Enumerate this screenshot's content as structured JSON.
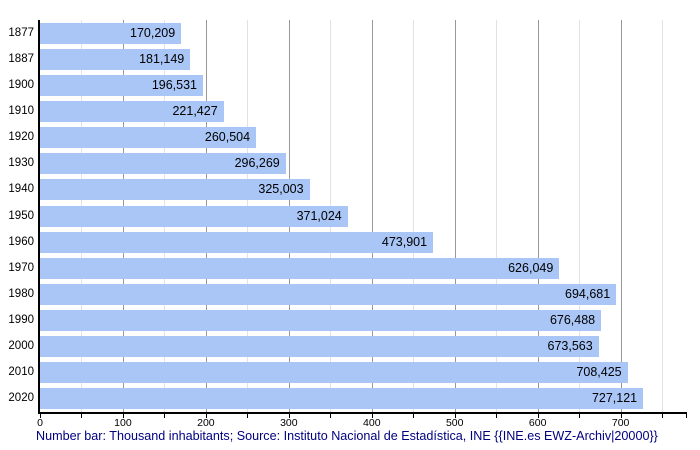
{
  "chart_data": {
    "type": "bar",
    "orientation": "horizontal",
    "title": "",
    "categories": [
      "1877",
      "1887",
      "1900",
      "1910",
      "1920",
      "1930",
      "1940",
      "1950",
      "1960",
      "1970",
      "1980",
      "1990",
      "2000",
      "2010",
      "2020"
    ],
    "values": [
      170209,
      181149,
      196531,
      221427,
      260504,
      296269,
      325003,
      371024,
      473901,
      626049,
      694681,
      676488,
      673563,
      708425,
      727121
    ],
    "value_labels": [
      "170,209",
      "181,149",
      "196,531",
      "221,427",
      "260,504",
      "296,269",
      "325,003",
      "371,024",
      "473,901",
      "626,049",
      "694,681",
      "676,488",
      "673,563",
      "708,425",
      "727,121"
    ],
    "x_ticks": [
      0,
      100,
      200,
      300,
      400,
      500,
      600,
      700
    ],
    "x_tick_labels": [
      "0",
      "100",
      "200",
      "300",
      "400",
      "500",
      "600",
      "700"
    ],
    "minor_grid_step": 50,
    "xlim": [
      0,
      780
    ],
    "axis_value_scale": 1000,
    "grid": true,
    "legend_position": "none",
    "xlabel": "",
    "ylabel": "",
    "caption": "Number bar: Thousand inhabitants; Source: Instituto Nacional de Estadística, INE {{INE.es EWZ-Archiv|20000}}",
    "colors": {
      "bar": "#a9c6f6",
      "axis": "#000000",
      "major_grid": "#999999",
      "minor_grid": "#e2e2e2",
      "label_text": "#000000",
      "caption_text": "#000080",
      "background": "#ffffff"
    }
  }
}
